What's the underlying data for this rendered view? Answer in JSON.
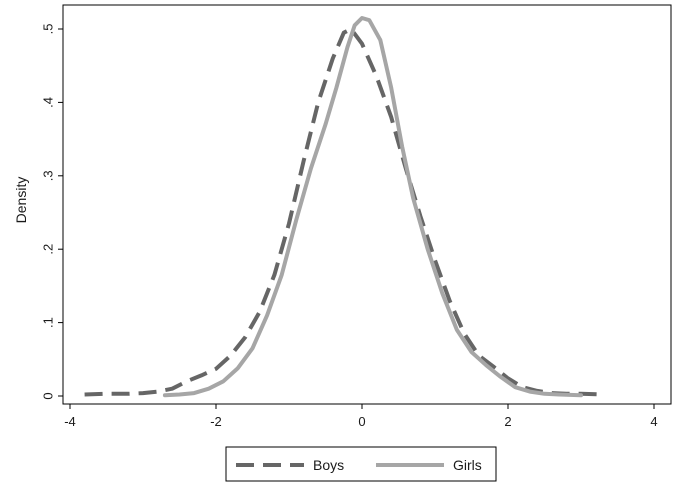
{
  "chart_data": {
    "type": "line",
    "xlabel": "",
    "ylabel": "Density",
    "xlim": [
      -4,
      4
    ],
    "ylim": [
      0,
      0.5
    ],
    "x_ticks": [
      "-4",
      "-2",
      "0",
      "2",
      "4"
    ],
    "y_ticks": [
      "0",
      ".1",
      ".2",
      ".3",
      ".4",
      ".5"
    ],
    "grid": false,
    "legend_position": "bottom",
    "series": [
      {
        "name": "Boys",
        "style": "dashed",
        "color": "#666666",
        "points": [
          [
            -3.8,
            0.002
          ],
          [
            -3.5,
            0.003
          ],
          [
            -3.2,
            0.003
          ],
          [
            -3.0,
            0.004
          ],
          [
            -2.8,
            0.006
          ],
          [
            -2.6,
            0.01
          ],
          [
            -2.4,
            0.02
          ],
          [
            -2.2,
            0.028
          ],
          [
            -2.0,
            0.037
          ],
          [
            -1.8,
            0.055
          ],
          [
            -1.6,
            0.08
          ],
          [
            -1.4,
            0.115
          ],
          [
            -1.2,
            0.165
          ],
          [
            -1.0,
            0.235
          ],
          [
            -0.8,
            0.32
          ],
          [
            -0.6,
            0.4
          ],
          [
            -0.4,
            0.46
          ],
          [
            -0.25,
            0.495
          ],
          [
            -0.15,
            0.5
          ],
          [
            0.0,
            0.48
          ],
          [
            0.2,
            0.435
          ],
          [
            0.4,
            0.38
          ],
          [
            0.6,
            0.31
          ],
          [
            0.8,
            0.245
          ],
          [
            1.0,
            0.185
          ],
          [
            1.2,
            0.13
          ],
          [
            1.4,
            0.085
          ],
          [
            1.6,
            0.055
          ],
          [
            1.8,
            0.04
          ],
          [
            2.0,
            0.024
          ],
          [
            2.2,
            0.012
          ],
          [
            2.4,
            0.007
          ],
          [
            2.6,
            0.004
          ],
          [
            2.8,
            0.003
          ],
          [
            3.0,
            0.003
          ],
          [
            3.3,
            0.002
          ]
        ]
      },
      {
        "name": "Girls",
        "style": "solid",
        "color": "#a6a6a6",
        "points": [
          [
            -2.7,
            0.001
          ],
          [
            -2.5,
            0.002
          ],
          [
            -2.3,
            0.004
          ],
          [
            -2.1,
            0.01
          ],
          [
            -1.9,
            0.02
          ],
          [
            -1.7,
            0.038
          ],
          [
            -1.5,
            0.065
          ],
          [
            -1.3,
            0.11
          ],
          [
            -1.1,
            0.165
          ],
          [
            -0.9,
            0.24
          ],
          [
            -0.7,
            0.31
          ],
          [
            -0.5,
            0.37
          ],
          [
            -0.35,
            0.42
          ],
          [
            -0.2,
            0.475
          ],
          [
            -0.1,
            0.505
          ],
          [
            0.0,
            0.515
          ],
          [
            0.1,
            0.512
          ],
          [
            0.25,
            0.485
          ],
          [
            0.4,
            0.42
          ],
          [
            0.55,
            0.34
          ],
          [
            0.7,
            0.27
          ],
          [
            0.9,
            0.2
          ],
          [
            1.1,
            0.14
          ],
          [
            1.3,
            0.09
          ],
          [
            1.5,
            0.06
          ],
          [
            1.7,
            0.042
          ],
          [
            1.9,
            0.026
          ],
          [
            2.1,
            0.012
          ],
          [
            2.3,
            0.006
          ],
          [
            2.5,
            0.003
          ],
          [
            2.7,
            0.002
          ],
          [
            3.0,
            0.001
          ]
        ]
      }
    ]
  }
}
